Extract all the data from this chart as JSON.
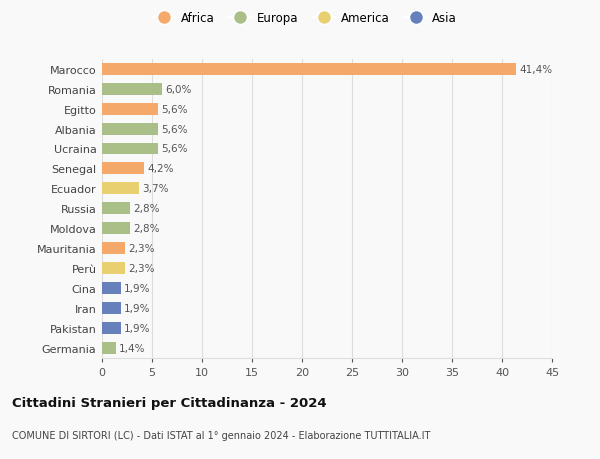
{
  "countries": [
    "Marocco",
    "Romania",
    "Egitto",
    "Albania",
    "Ucraina",
    "Senegal",
    "Ecuador",
    "Russia",
    "Moldova",
    "Mauritania",
    "Perù",
    "Cina",
    "Iran",
    "Pakistan",
    "Germania"
  ],
  "values": [
    41.4,
    6.0,
    5.6,
    5.6,
    5.6,
    4.2,
    3.7,
    2.8,
    2.8,
    2.3,
    2.3,
    1.9,
    1.9,
    1.9,
    1.4
  ],
  "labels": [
    "41,4%",
    "6,0%",
    "5,6%",
    "5,6%",
    "5,6%",
    "4,2%",
    "3,7%",
    "2,8%",
    "2,8%",
    "2,3%",
    "2,3%",
    "1,9%",
    "1,9%",
    "1,9%",
    "1,4%"
  ],
  "continents": [
    "Africa",
    "Europa",
    "Africa",
    "Europa",
    "Europa",
    "Africa",
    "America",
    "Europa",
    "Europa",
    "Africa",
    "America",
    "Asia",
    "Asia",
    "Asia",
    "Europa"
  ],
  "continent_colors": {
    "Africa": "#F4A96A",
    "Europa": "#AABF88",
    "America": "#E8D070",
    "Asia": "#6680BB"
  },
  "title": "Cittadini Stranieri per Cittadinanza - 2024",
  "subtitle": "COMUNE DI SIRTORI (LC) - Dati ISTAT al 1° gennaio 2024 - Elaborazione TUTTITALIA.IT",
  "xlim": [
    0,
    45
  ],
  "xticks": [
    0,
    5,
    10,
    15,
    20,
    25,
    30,
    35,
    40,
    45
  ],
  "background_color": "#f9f9f9",
  "grid_color": "#dddddd",
  "bar_height": 0.6,
  "legend_order": [
    "Africa",
    "Europa",
    "America",
    "Asia"
  ]
}
